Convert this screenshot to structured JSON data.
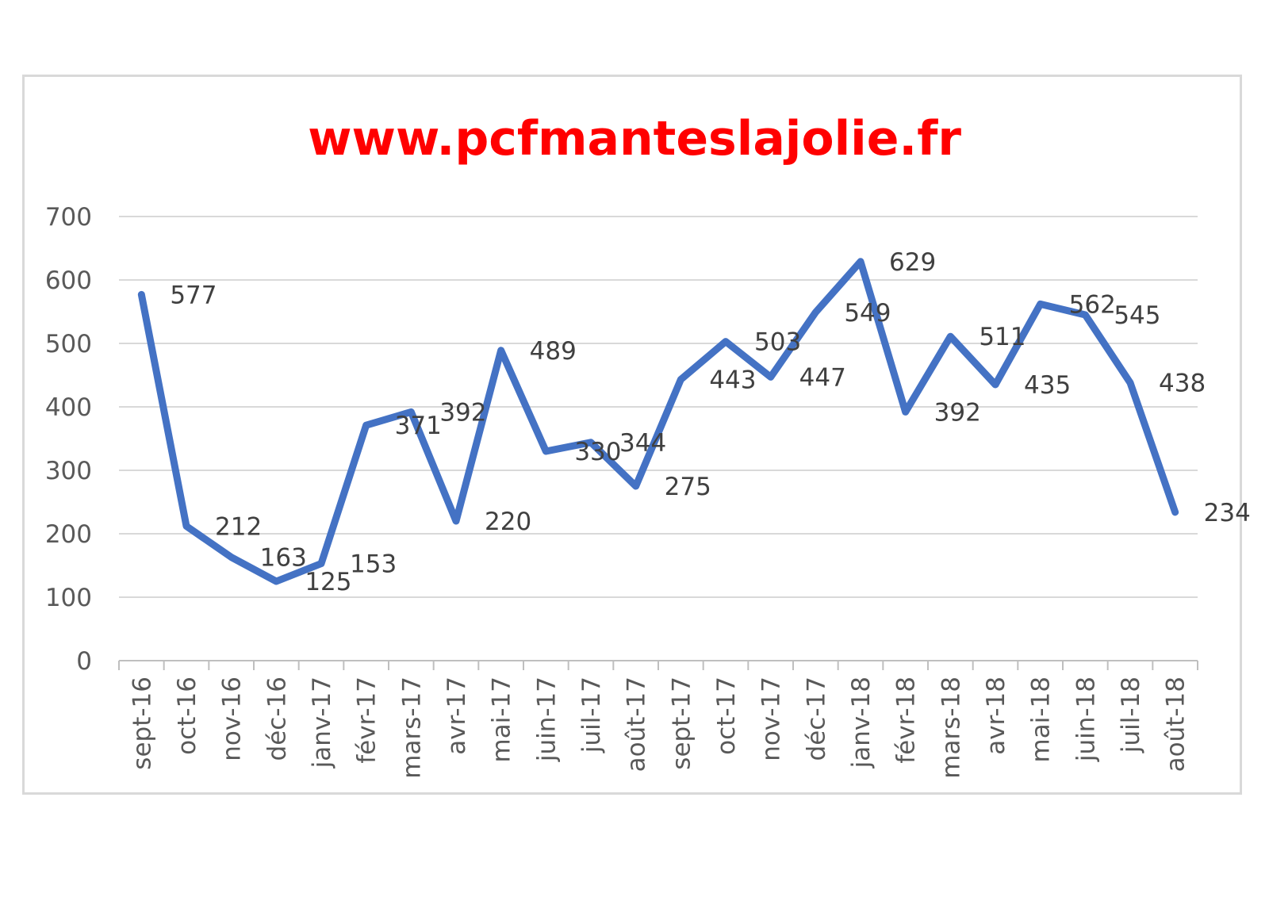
{
  "chart_data": {
    "type": "line",
    "title": "www.pcfmanteslajolie.fr",
    "categories": [
      "sept-16",
      "oct-16",
      "nov-16",
      "déc-16",
      "janv-17",
      "févr-17",
      "mars-17",
      "avr-17",
      "mai-17",
      "juin-17",
      "juil-17",
      "août-17",
      "sept-17",
      "oct-17",
      "nov-17",
      "déc-17",
      "janv-18",
      "févr-18",
      "mars-18",
      "avr-18",
      "mai-18",
      "juin-18",
      "juil-18",
      "août-18"
    ],
    "series": [
      {
        "values": [
          577,
          212,
          163,
          125,
          153,
          371,
          392,
          220,
          489,
          330,
          344,
          275,
          443,
          503,
          447,
          549,
          629,
          392,
          511,
          435,
          562,
          545,
          438,
          234
        ]
      }
    ],
    "ylim": [
      0,
      700
    ],
    "yticks": [
      0,
      100,
      200,
      300,
      400,
      500,
      600,
      700
    ],
    "xlabel": "",
    "ylabel": "",
    "grid": true,
    "line_color": "#4472c4",
    "title_color": "#ff0000"
  }
}
